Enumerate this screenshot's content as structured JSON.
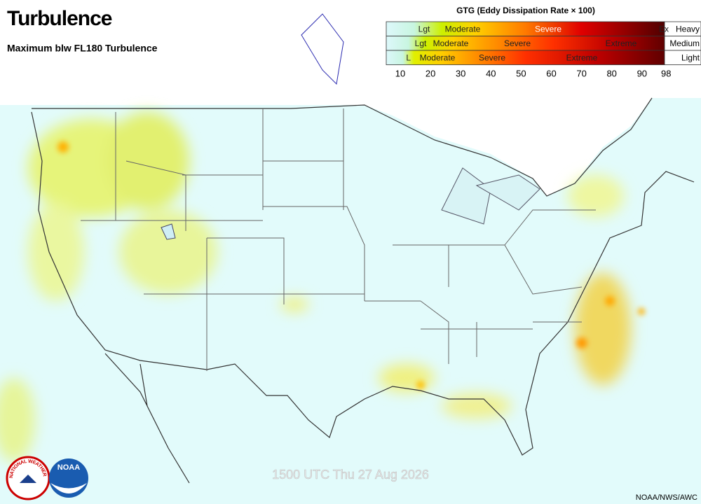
{
  "header": {
    "title": "Turbulence",
    "subtitle": "Maximum blw FL180 Turbulence"
  },
  "legend": {
    "title": "GTG (Eddy Dissipation Rate × 100)",
    "rows": [
      {
        "label": "Heavy",
        "categories": [
          "Lgt",
          "Moderate",
          "Severe",
          "Ex"
        ]
      },
      {
        "label": "Medium",
        "categories": [
          "Lgt",
          "Moderate",
          "Severe",
          "Extreme"
        ]
      },
      {
        "label": "Light",
        "categories": [
          "L",
          "Moderate",
          "Severe",
          "Extreme"
        ]
      }
    ],
    "scale": [
      10,
      20,
      30,
      40,
      50,
      60,
      70,
      80,
      90,
      98
    ]
  },
  "timestamp": "1500 UTC Thu 27 Aug 2026",
  "credit": "NOAA/NWS/AWC",
  "logos": {
    "nws": "NATIONAL WEATHER SERVICE",
    "noaa": "NOAA"
  }
}
